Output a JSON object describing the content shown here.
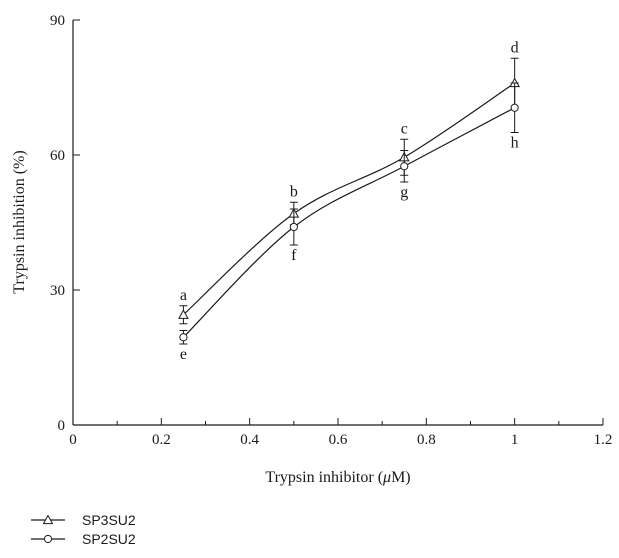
{
  "chart_data": {
    "type": "line",
    "xlabel_prefix": "Trypsin inhibitor (",
    "xlabel_unit": "μ",
    "xlabel_suffix": "M)",
    "ylabel": "Trypsin inhibition (%)",
    "xlim": [
      0,
      1.2
    ],
    "ylim": [
      0,
      90
    ],
    "x_ticks": [
      0,
      0.2,
      0.4,
      0.6,
      0.8,
      1,
      1.2
    ],
    "x_tick_labels": [
      "0",
      "0.2",
      "0.4",
      "0.6",
      "0.8",
      "1",
      "1.2"
    ],
    "y_ticks": [
      0,
      30,
      60,
      90
    ],
    "y_tick_labels": [
      "0",
      "30",
      "60",
      "90"
    ],
    "grid": false,
    "legend_position": "bottom-left",
    "x": [
      0.25,
      0.5,
      0.75,
      1
    ],
    "series": [
      {
        "name": "SP3SU2",
        "marker": "triangle",
        "values": [
          24.5,
          47,
          59.5,
          76
        ],
        "errors": [
          2,
          2.5,
          4,
          5.5
        ],
        "letters": [
          "a",
          "b",
          "c",
          "d"
        ],
        "letter_position": "above"
      },
      {
        "name": "SP2SU2",
        "marker": "circle",
        "values": [
          19.5,
          44,
          57.5,
          70.5
        ],
        "errors": [
          1.5,
          4,
          3.5,
          5.5
        ],
        "letters": [
          "e",
          "f",
          "g",
          "h"
        ],
        "letter_position": "below"
      }
    ]
  }
}
